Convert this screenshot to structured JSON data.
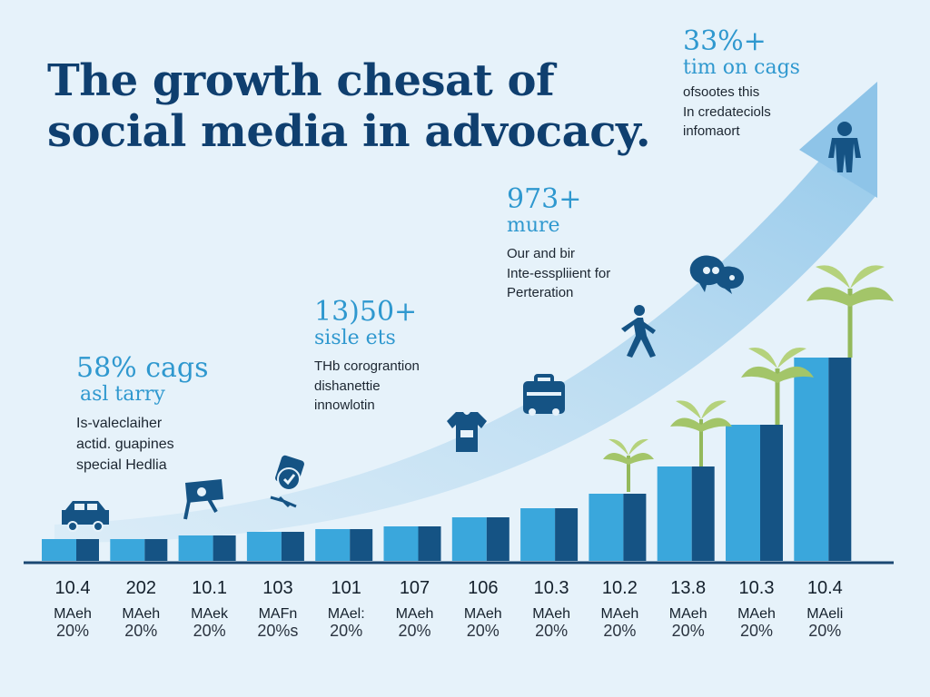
{
  "title": {
    "line1": "The growth chesat of",
    "line2": "social media in advocacy."
  },
  "callouts": [
    {
      "value": "58% cags",
      "subtitle": "asl tarry",
      "lines": [
        "Is-valeclaiher",
        "actid. guapines",
        "special Hedlia"
      ]
    },
    {
      "value": "13)50+",
      "subtitle": "sisle ets",
      "lines": [
        "THb corograntion",
        "dishanettie",
        "innowlotin"
      ]
    },
    {
      "value": "973+",
      "subtitle": "mure",
      "lines": [
        "Our and bir",
        "Inte-esspliient for",
        "Perteration"
      ]
    },
    {
      "value": "33%+",
      "subtitle": "tim on cags",
      "lines": [
        "ofsootes this",
        "In credateciols",
        "infomaort"
      ]
    }
  ],
  "chart_data": {
    "type": "bar",
    "title": "The growth chesat of social media in advocacy.",
    "categories": [
      "10.4",
      "202",
      "10.1",
      "103",
      "101",
      "107",
      "106",
      "10.3",
      "10.2",
      "13.8",
      "10.3",
      "10.4"
    ],
    "category_units": [
      "MAeh",
      "MAeh",
      "MAek",
      "MAFn",
      "MAel:",
      "MAeh",
      "MAeh",
      "MAeh",
      "MAeh",
      "MAeh",
      "MAeh",
      "MAeli"
    ],
    "category_percent": [
      "20%",
      "20%",
      "20%",
      "20%s",
      "20%",
      "20%",
      "20%",
      "20%",
      "20%",
      "20%",
      "20%",
      "20%"
    ],
    "series": [
      {
        "name": "light",
        "values": [
          24,
          24,
          28,
          32,
          35,
          38,
          48,
          58,
          74,
          104,
          150,
          224
        ]
      },
      {
        "name": "dark",
        "values": [
          24,
          24,
          28,
          32,
          35,
          38,
          48,
          58,
          74,
          104,
          150,
          224
        ]
      }
    ],
    "ylim": [
      0,
      240
    ],
    "colors": {
      "light": "#3aa7dc",
      "dark": "#155384",
      "baseline": "#1b4872"
    }
  },
  "icons": [
    "car-icon",
    "flag-icon",
    "like-badge-icon",
    "tshirt-icon",
    "briefcase-icon",
    "walking-person-icon",
    "chat-bubbles-icon",
    "person-icon"
  ]
}
